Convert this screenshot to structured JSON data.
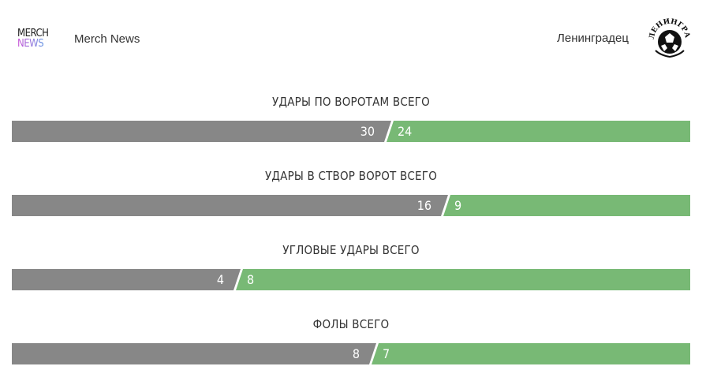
{
  "header": {
    "home_team": {
      "name": "Merch News",
      "logo_line1": "MERCH",
      "logo_line2": "NEWS"
    },
    "away_team": {
      "name": "Ленинградец",
      "logo_text": "ЛЕНИНГРАДЕЦ"
    }
  },
  "stats": [
    {
      "title": "УДАРЫ ПО ВОРОТАМ ВСЕГО",
      "home": 30,
      "away": 24,
      "home_display": "30",
      "away_display": "24"
    },
    {
      "title": "УДАРЫ В СТВОР ВОРОТ ВСЕГО",
      "home": 16,
      "away": 9,
      "home_display": "16",
      "away_display": "9"
    },
    {
      "title": "УГЛОВЫЕ УДАРЫ ВСЕГО",
      "home": 4,
      "away": 8,
      "home_display": "4",
      "away_display": "8"
    },
    {
      "title": "ФОЛЫ ВСЕГО",
      "home": 8,
      "away": 7,
      "home_display": "8",
      "away_display": "7"
    }
  ],
  "colors": {
    "home_bar": "#878787",
    "away_bar": "#78b975"
  }
}
